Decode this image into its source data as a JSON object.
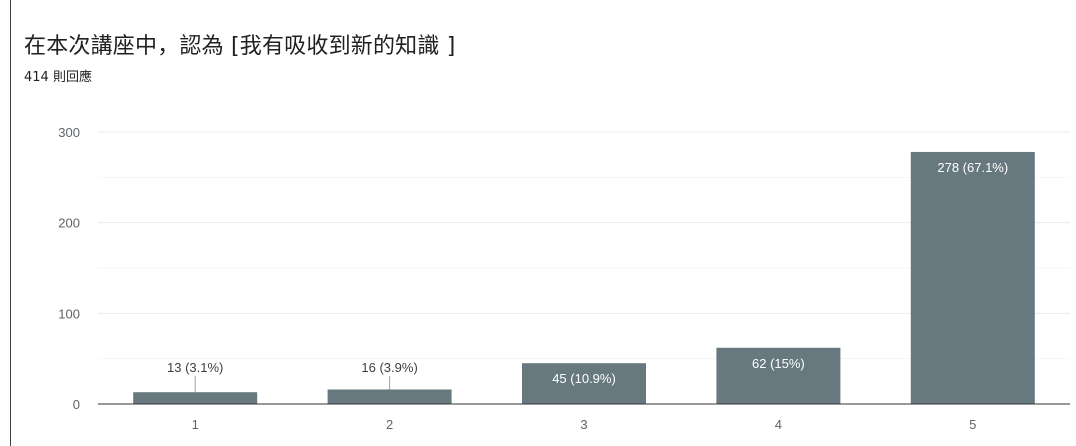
{
  "question": {
    "title": "在本次講座中，認為 [我有吸收到新的知識 ]",
    "response_count": "414 則回應"
  },
  "colors": {
    "bar": "#67797f",
    "grid": "#ececec",
    "axis": "#333333"
  },
  "chart_data": {
    "type": "bar",
    "title": "在本次講座中，認為 [我有吸收到新的知識 ]",
    "xlabel": "",
    "ylabel": "",
    "categories": [
      "1",
      "2",
      "3",
      "4",
      "5"
    ],
    "values": [
      13,
      16,
      45,
      62,
      278
    ],
    "data_labels": [
      "13 (3.1%)",
      "16 (3.9%)",
      "45 (10.9%)",
      "62 (15%)",
      "278 (67.1%)"
    ],
    "ylim": [
      0,
      300
    ],
    "yticks": [
      0,
      100,
      200,
      300
    ],
    "grid": true,
    "legend": "none"
  }
}
